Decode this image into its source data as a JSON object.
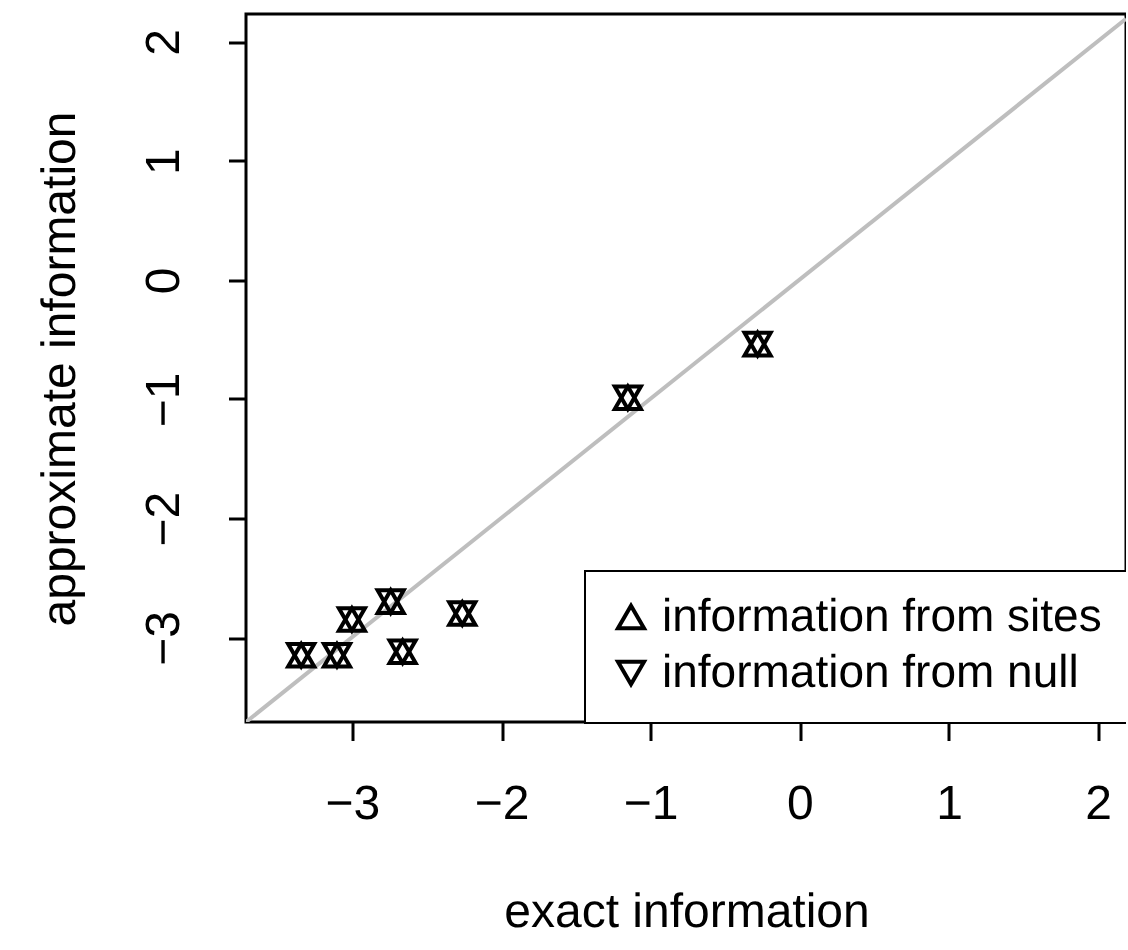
{
  "chart_data": {
    "type": "scatter",
    "xlabel": "exact information",
    "ylabel": "approximate information",
    "xlim": [
      -3.71,
      2.19
    ],
    "ylim": [
      -3.71,
      2.23
    ],
    "xticks": [
      {
        "value": -3,
        "label": "−3"
      },
      {
        "value": -2,
        "label": "−2"
      },
      {
        "value": -1,
        "label": "−1"
      },
      {
        "value": 0,
        "label": "0"
      },
      {
        "value": 1,
        "label": "1"
      },
      {
        "value": 2,
        "label": "2"
      }
    ],
    "yticks": [
      {
        "value": -3,
        "label": "−3"
      },
      {
        "value": -2,
        "label": "−2"
      },
      {
        "value": -1,
        "label": "−1"
      },
      {
        "value": 0,
        "label": "0"
      },
      {
        "value": 1,
        "label": "1"
      },
      {
        "value": 2,
        "label": "2"
      }
    ],
    "grid": false,
    "legend": "bottom right",
    "series": [
      {
        "type": "line",
        "color": "#bebebe",
        "x": [
          -3.71,
          2.19
        ],
        "values": [
          -3.71,
          2.19
        ]
      },
      {
        "name": "information from sites",
        "color": "#000000",
        "marker": "triangle",
        "x": [
          -3.34,
          -3.1,
          -3.0,
          -2.74,
          -2.66,
          -2.26,
          -1.15,
          -0.28
        ],
        "values": [
          -3.15,
          -3.15,
          -2.85,
          -2.7,
          -3.12,
          -2.8,
          -0.99,
          -0.54
        ]
      },
      {
        "name": "information from null",
        "color": "#000000",
        "marker": "triangle-down",
        "x": [
          -3.34,
          -3.1,
          -3.0,
          -2.74,
          -2.66,
          -2.26,
          -1.15,
          -0.28
        ],
        "values": [
          -3.15,
          -3.15,
          -2.85,
          -2.7,
          -3.12,
          -2.8,
          -0.99,
          -0.54
        ]
      }
    ]
  }
}
